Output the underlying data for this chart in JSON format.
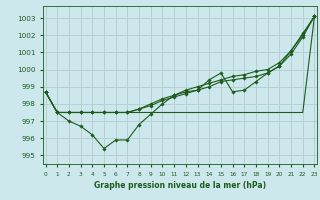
{
  "title": "Graphe pression niveau de la mer (hPa)",
  "bg_color": "#cce8ed",
  "grid_color": "#b8d0d4",
  "line_color": "#1e5c1e",
  "ylim": [
    994.5,
    1003.7
  ],
  "yticks": [
    995,
    996,
    997,
    998,
    999,
    1000,
    1001,
    1002,
    1003
  ],
  "xlim": [
    -0.2,
    23.2
  ],
  "x_ticks": [
    0,
    1,
    2,
    3,
    4,
    5,
    6,
    7,
    8,
    9,
    10,
    11,
    12,
    13,
    14,
    15,
    16,
    17,
    18,
    19,
    20,
    21,
    22,
    23
  ],
  "lines": [
    [
      998.7,
      997.5,
      997.5,
      997.5,
      997.5,
      997.5,
      997.5,
      997.5,
      997.5,
      997.5,
      997.5,
      997.5,
      997.5,
      997.5,
      997.5,
      997.5,
      997.5,
      997.5,
      997.5,
      997.5,
      997.5,
      997.5,
      997.5,
      1003.1
    ],
    [
      998.7,
      997.5,
      997.0,
      996.7,
      996.3,
      995.4,
      995.9,
      995.9,
      996.8,
      997.4,
      998.0,
      998.5,
      998.7,
      998.8,
      999.4,
      999.8,
      998.7,
      998.8,
      999.3,
      999.8,
      1000.2,
      1001.1,
      1002.1,
      1003.1
    ],
    [
      998.7,
      997.5,
      997.5,
      997.5,
      997.5,
      997.5,
      997.5,
      997.5,
      997.5,
      997.8,
      998.0,
      998.3,
      998.5,
      998.7,
      998.9,
      999.2,
      999.4,
      999.6,
      999.8,
      999.9,
      1000.3,
      1000.9,
      1002.0,
      1003.1
    ],
    [
      998.7,
      997.5,
      997.5,
      997.5,
      997.5,
      997.5,
      997.5,
      997.5,
      997.5,
      997.9,
      998.2,
      998.5,
      998.7,
      998.9,
      999.1,
      999.4,
      999.6,
      999.7,
      999.9,
      1000.0,
      1000.4,
      1001.1,
      1002.1,
      1003.1
    ]
  ],
  "lines_corrected": [
    [
      998.7,
      997.5,
      997.5,
      997.5,
      997.5,
      997.5,
      997.5,
      997.5,
      997.5,
      997.5,
      997.5,
      997.5,
      997.5,
      997.5,
      997.5,
      997.5,
      997.5,
      997.5,
      997.5,
      997.5,
      997.5,
      997.5,
      997.5,
      1003.1
    ],
    [
      998.7,
      997.5,
      997.0,
      996.7,
      996.3,
      995.4,
      995.9,
      995.9,
      996.8,
      997.4,
      998.0,
      998.5,
      998.7,
      998.8,
      999.4,
      999.8,
      998.7,
      998.8,
      999.3,
      999.8,
      1000.2,
      1001.1,
      1002.1,
      1003.1
    ],
    [
      998.7,
      997.5,
      997.5,
      997.5,
      997.5,
      997.5,
      997.5,
      997.5,
      997.5,
      997.8,
      998.0,
      998.3,
      998.5,
      998.7,
      998.9,
      999.2,
      999.4,
      999.6,
      999.8,
      999.9,
      1000.3,
      1000.9,
      1002.0,
      1003.1
    ],
    [
      998.7,
      997.5,
      997.5,
      997.5,
      997.5,
      997.5,
      997.5,
      997.5,
      997.5,
      997.9,
      998.2,
      998.5,
      998.7,
      998.9,
      999.1,
      999.4,
      999.6,
      999.7,
      999.9,
      1000.0,
      1000.4,
      1001.1,
      1002.1,
      1003.1
    ]
  ]
}
